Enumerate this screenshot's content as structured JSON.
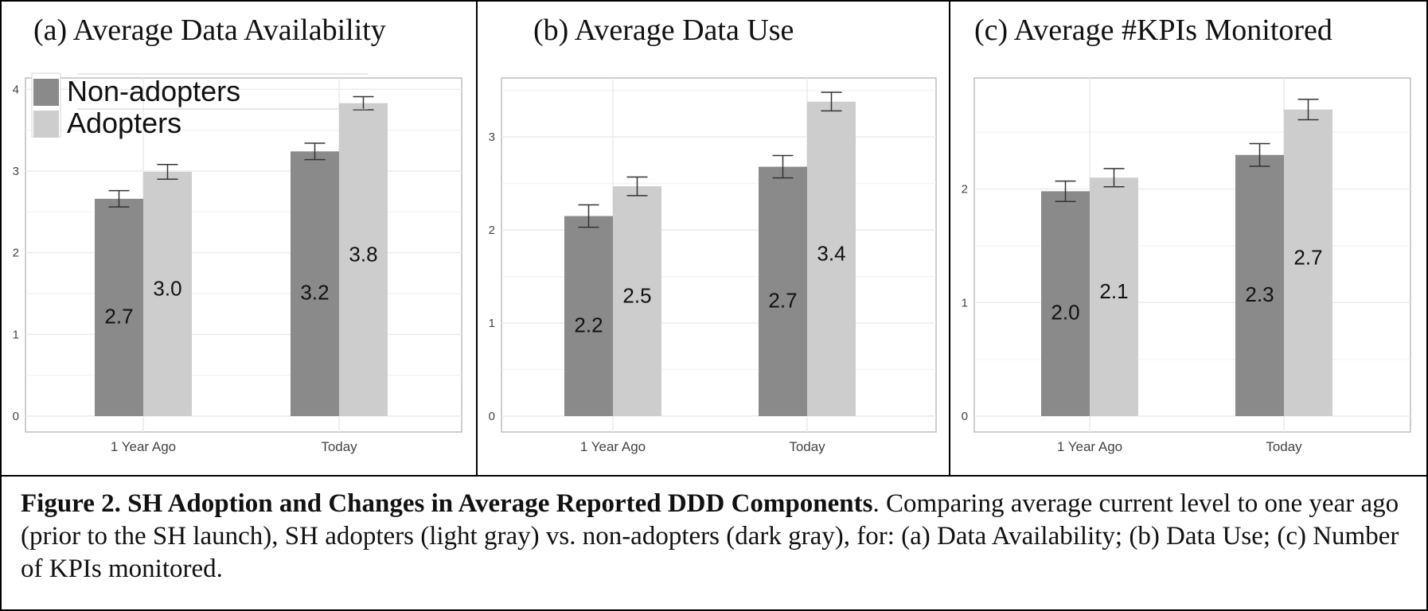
{
  "colors": {
    "non_adopters": "#8a8a8a",
    "adopters": "#cdcdcd"
  },
  "legend": {
    "items": [
      "Non-adopters",
      "Adopters"
    ],
    "placement": "top-left"
  },
  "panels": [
    {
      "id": "a",
      "label": "(a)",
      "title": "Average Data Availability"
    },
    {
      "id": "b",
      "label": "(b)",
      "title": "Average Data Use"
    },
    {
      "id": "c",
      "label": "(c)",
      "title": "Average #KPIs Monitored"
    }
  ],
  "chart_data": [
    {
      "type": "bar",
      "title": "(a) Average Data Availability",
      "categories": [
        "1 Year Ago",
        "Today"
      ],
      "series": [
        {
          "name": "Non-adopters",
          "values": [
            2.66,
            3.24
          ],
          "labels": [
            "2.7",
            "3.2"
          ],
          "error": [
            0.1,
            0.1
          ]
        },
        {
          "name": "Adopters",
          "values": [
            2.99,
            3.83
          ],
          "labels": [
            "3.0",
            "3.8"
          ],
          "error": [
            0.09,
            0.08
          ]
        }
      ],
      "ylim": [
        0,
        4.1
      ],
      "yticks": [
        "0",
        "1",
        "2",
        "3",
        "4"
      ],
      "grid": true,
      "legend": "top-left"
    },
    {
      "type": "bar",
      "title": "(b) Average Data Use",
      "categories": [
        "1 Year Ago",
        "Today"
      ],
      "series": [
        {
          "name": "Non-adopters",
          "values": [
            2.15,
            2.68
          ],
          "labels": [
            "2.2",
            "2.7"
          ],
          "error": [
            0.12,
            0.12
          ]
        },
        {
          "name": "Adopters",
          "values": [
            2.47,
            3.38
          ],
          "labels": [
            "2.5",
            "3.4"
          ],
          "error": [
            0.1,
            0.1
          ]
        }
      ],
      "ylim": [
        0,
        3.6
      ],
      "yticks": [
        "0",
        "1",
        "2",
        "3"
      ],
      "grid": true
    },
    {
      "type": "bar",
      "title": "(c) Average #KPIs Monitored",
      "categories": [
        "1 Year Ago",
        "Today"
      ],
      "series": [
        {
          "name": "Non-adopters",
          "values": [
            1.98,
            2.3
          ],
          "labels": [
            "2.0",
            "2.3"
          ],
          "error": [
            0.09,
            0.1
          ]
        },
        {
          "name": "Adopters",
          "values": [
            2.1,
            2.7
          ],
          "labels": [
            "2.1",
            "2.7"
          ],
          "error": [
            0.08,
            0.09
          ]
        }
      ],
      "ylim": [
        0,
        2.95
      ],
      "yticks": [
        "0",
        "1",
        "2"
      ],
      "grid": true
    }
  ],
  "caption": {
    "bold": "Figure 2. SH Adoption and Changes in Average Reported DDD Components",
    "text": ". Comparing average current level to one year ago (prior to the SH launch), SH adopters (light gray) vs. non-adopters (dark gray), for: (a) Data Availability; (b) Data Use; (c) Number of KPIs monitored."
  }
}
